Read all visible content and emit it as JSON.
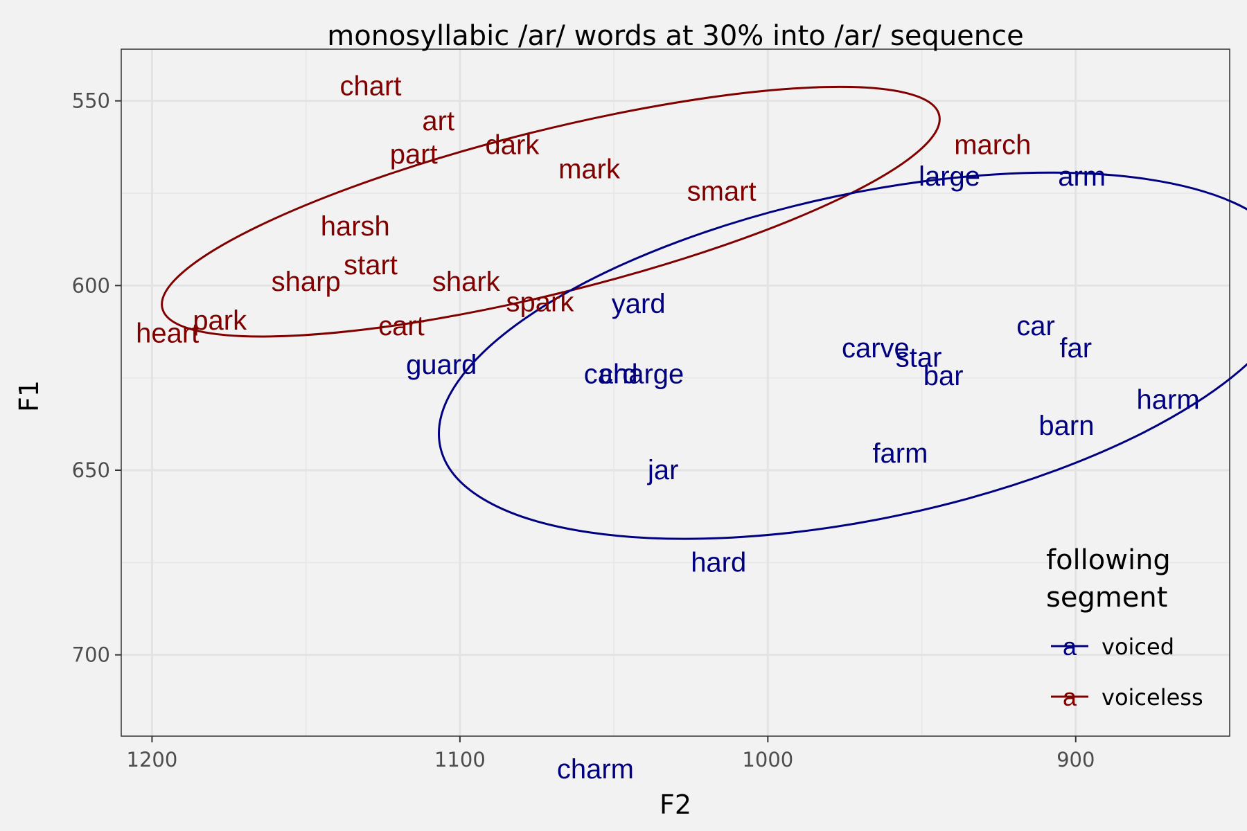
{
  "chart_data": {
    "type": "scatter",
    "title": "monosyllabic /ar/ words at 30% into /ar/ sequence",
    "xlabel": "F2",
    "ylabel": "F1",
    "xlim": [
      1210,
      850
    ],
    "ylim": [
      722,
      536
    ],
    "x_reversed": true,
    "y_reversed": true,
    "xticks": [
      1200,
      1100,
      1000,
      900
    ],
    "yticks": [
      550,
      600,
      650,
      700
    ],
    "grid": true,
    "legend": {
      "title_lines": [
        "following",
        "segment"
      ],
      "placement": "bottom-right",
      "glyph": "a",
      "entries": [
        {
          "label": "voiced",
          "color": "#000080"
        },
        {
          "label": "voiceless",
          "color": "#800000"
        }
      ]
    },
    "series": [
      {
        "name": "voiced",
        "color": "#000080",
        "points": [
          {
            "label": "large",
            "x": 941,
            "y": 570.5
          },
          {
            "label": "arm",
            "x": 898,
            "y": 570.5
          },
          {
            "label": "yard",
            "x": 1042,
            "y": 605
          },
          {
            "label": "car",
            "x": 913,
            "y": 611
          },
          {
            "label": "far",
            "x": 900,
            "y": 617
          },
          {
            "label": "carve",
            "x": 965,
            "y": 617
          },
          {
            "label": "star",
            "x": 951,
            "y": 619.5
          },
          {
            "label": "bar",
            "x": 943,
            "y": 624.5
          },
          {
            "label": "guard",
            "x": 1106,
            "y": 621.5
          },
          {
            "label": "card",
            "x": 1051,
            "y": 624
          },
          {
            "label": "charge",
            "x": 1041,
            "y": 624
          },
          {
            "label": "harm",
            "x": 870,
            "y": 631
          },
          {
            "label": "barn",
            "x": 903,
            "y": 638
          },
          {
            "label": "farm",
            "x": 957,
            "y": 645.5
          },
          {
            "label": "jar",
            "x": 1034,
            "y": 650
          },
          {
            "label": "hard",
            "x": 1016,
            "y": 675
          },
          {
            "label": "charm",
            "x": 1056,
            "y": 731
          }
        ]
      },
      {
        "name": "voiceless",
        "color": "#800000",
        "points": [
          {
            "label": "chart",
            "x": 1129,
            "y": 546
          },
          {
            "label": "art",
            "x": 1107,
            "y": 555.5
          },
          {
            "label": "march",
            "x": 927,
            "y": 562
          },
          {
            "label": "dark",
            "x": 1083,
            "y": 562
          },
          {
            "label": "part",
            "x": 1115,
            "y": 564.5
          },
          {
            "label": "mark",
            "x": 1058,
            "y": 568.5
          },
          {
            "label": "smart",
            "x": 1015,
            "y": 574.5
          },
          {
            "label": "harsh",
            "x": 1134,
            "y": 584
          },
          {
            "label": "start",
            "x": 1129,
            "y": 594.5
          },
          {
            "label": "sharp",
            "x": 1150,
            "y": 599
          },
          {
            "label": "shark",
            "x": 1098,
            "y": 599
          },
          {
            "label": "spark",
            "x": 1074,
            "y": 604.5
          },
          {
            "label": "park",
            "x": 1178,
            "y": 609.5
          },
          {
            "label": "heart",
            "x": 1195,
            "y": 613
          },
          {
            "label": "cart",
            "x": 1119,
            "y": 611
          }
        ]
      }
    ],
    "ellipses": [
      {
        "series": "voiceless",
        "cx": 1070.5,
        "cy": 580,
        "rx": 130,
        "ry": 22,
        "angle_deg": 14
      },
      {
        "series": "voiced",
        "cx": 967.5,
        "cy": 619,
        "rx": 142,
        "ry": 44,
        "angle_deg": 12
      }
    ]
  }
}
